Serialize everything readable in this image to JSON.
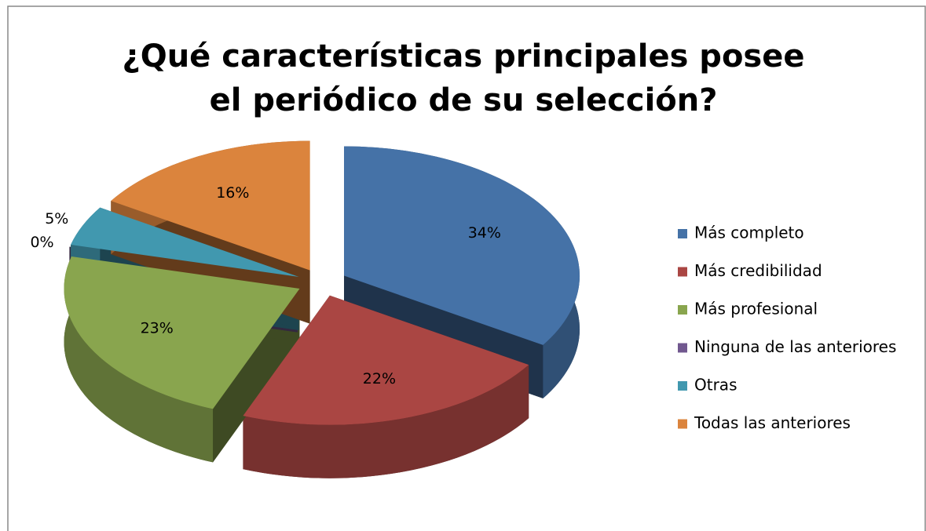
{
  "chart_data": {
    "type": "pie",
    "title": "¿Qué características principales posee el periódico de su selección?",
    "categories": [
      "Más completo",
      "Más credibilidad",
      "Más profesional",
      "Ninguna de las anteriores",
      "Otras",
      "Todas las anteriores"
    ],
    "values": [
      34,
      22,
      23,
      0,
      5,
      16
    ],
    "value_labels": [
      "34%",
      "22%",
      "23%",
      "0%",
      "5%",
      "16%"
    ],
    "colors": [
      "#4572a7",
      "#aa4643",
      "#89a54e",
      "#71588f",
      "#4198af",
      "#db843d"
    ],
    "legend": "right"
  }
}
